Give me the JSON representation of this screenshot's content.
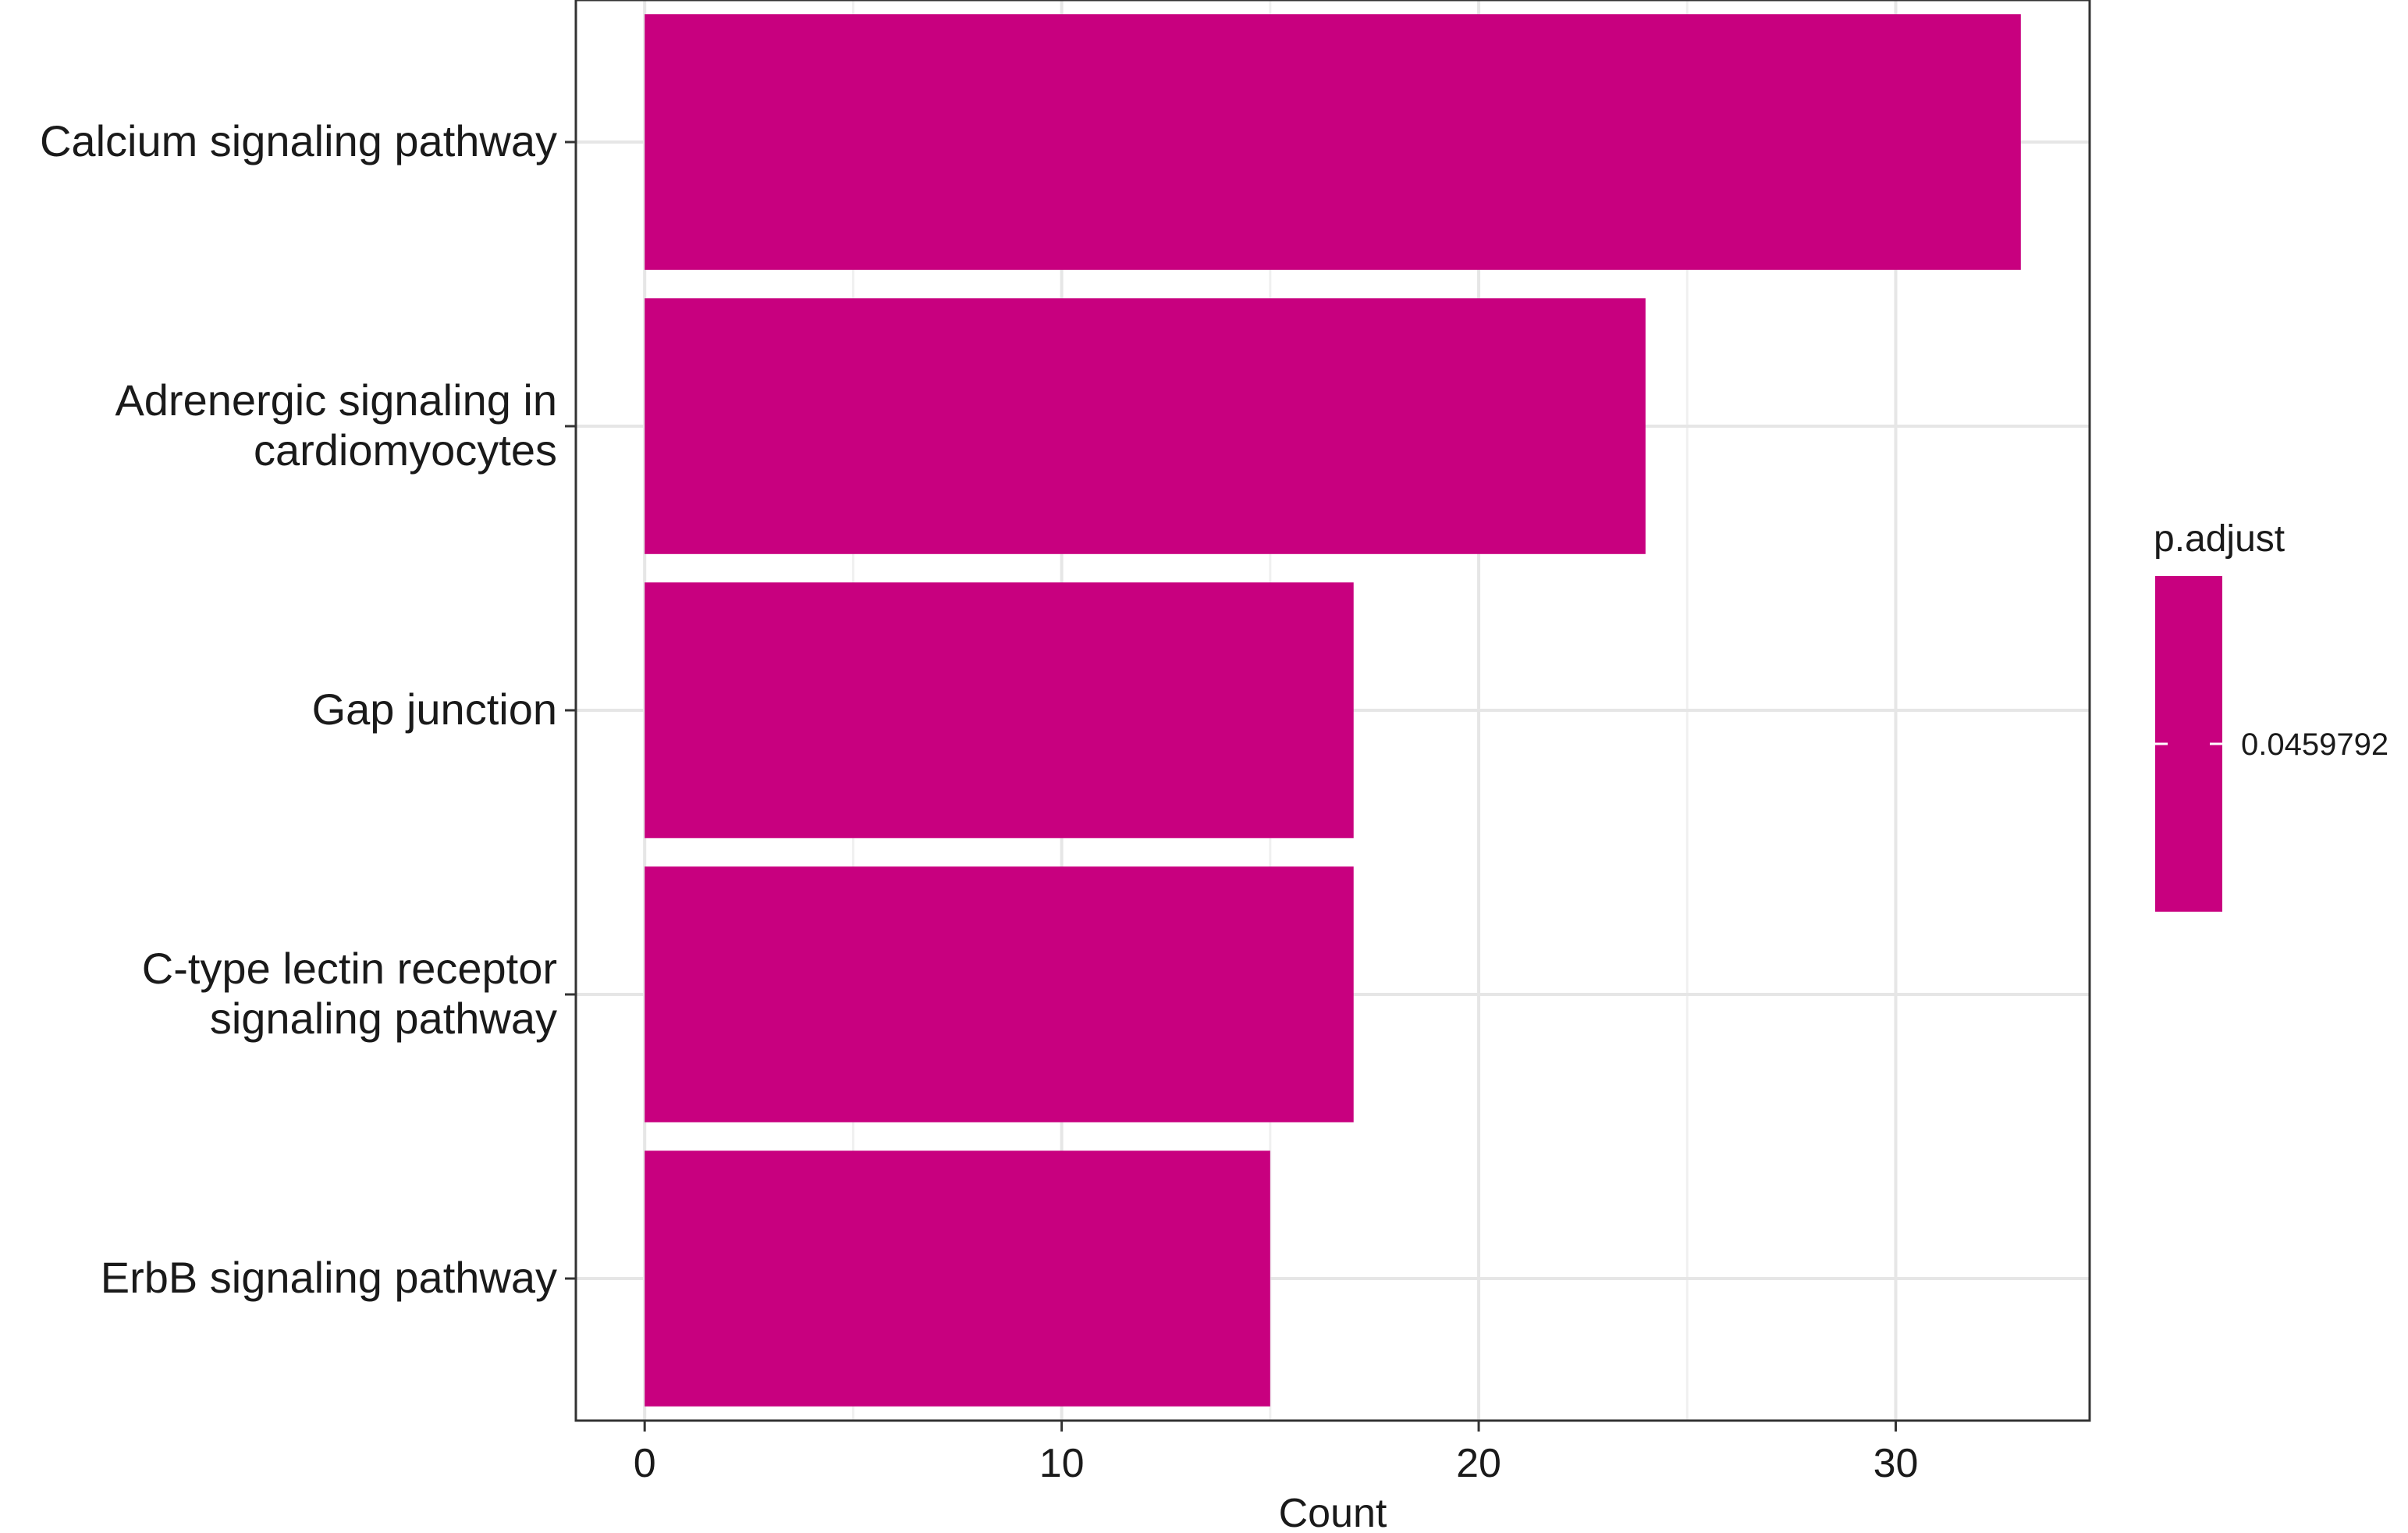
{
  "chart_data": {
    "type": "bar",
    "orientation": "horizontal",
    "categories": [
      "Calcium signaling pathway",
      "Adrenergic signaling in cardiomyocytes",
      "Gap junction",
      "C-type lectin receptor signaling pathway",
      "ErbB signaling pathway"
    ],
    "category_label_lines": [
      [
        "Calcium signaling pathway"
      ],
      [
        "Adrenergic signaling in",
        "cardiomyocytes"
      ],
      [
        "Gap junction"
      ],
      [
        "C-type lectin receptor",
        "signaling pathway"
      ],
      [
        "ErbB signaling pathway"
      ]
    ],
    "values": [
      33,
      24,
      17,
      17,
      15
    ],
    "title": "",
    "xlabel": "Count",
    "ylabel": "",
    "xlim": [
      -1.65,
      34.65
    ],
    "xticks": [
      0,
      10,
      20,
      30
    ],
    "xtick_labels": [
      "0",
      "10",
      "20",
      "30"
    ],
    "grid": true,
    "bar_color": "#C8007F",
    "legend": {
      "title": "p.adjust",
      "labels": [
        "0.0459792"
      ],
      "position": "right",
      "color": "#C8007F"
    }
  }
}
